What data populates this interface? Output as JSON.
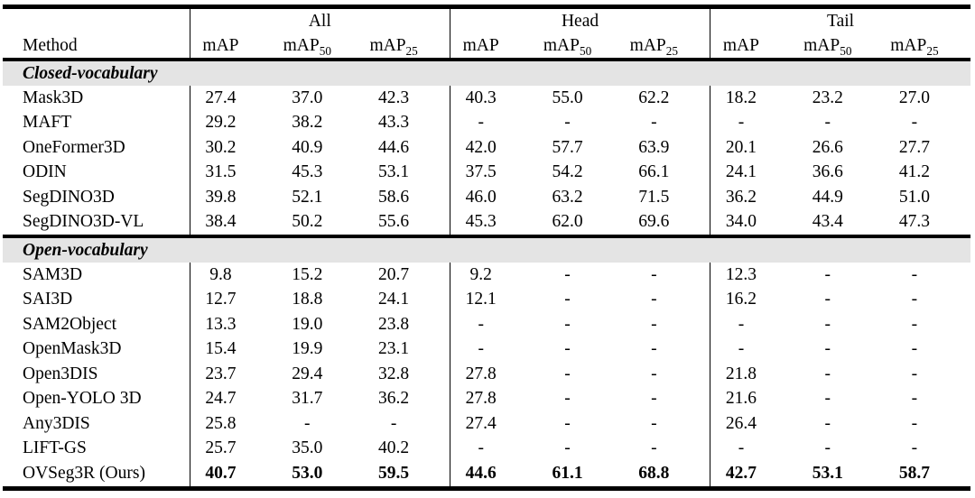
{
  "table": {
    "method_header": "Method",
    "groups": [
      {
        "label": "All"
      },
      {
        "label": "Head"
      },
      {
        "label": "Tail"
      }
    ],
    "metric_headers": [
      {
        "base": "mAP",
        "sub": ""
      },
      {
        "base": "mAP",
        "sub": "50"
      },
      {
        "base": "mAP",
        "sub": "25"
      }
    ],
    "sections": [
      {
        "label": "Closed-vocabulary",
        "rows": [
          {
            "method": "Mask3D",
            "values": [
              "27.4",
              "37.0",
              "42.3",
              "40.3",
              "55.0",
              "62.2",
              "18.2",
              "23.2",
              "27.0"
            ],
            "bold_values": false
          },
          {
            "method": "MAFT",
            "values": [
              "29.2",
              "38.2",
              "43.3",
              "-",
              "-",
              "-",
              "-",
              "-",
              "-"
            ],
            "bold_values": false
          },
          {
            "method": "OneFormer3D",
            "values": [
              "30.2",
              "40.9",
              "44.6",
              "42.0",
              "57.7",
              "63.9",
              "20.1",
              "26.6",
              "27.7"
            ],
            "bold_values": false
          },
          {
            "method": "ODIN",
            "values": [
              "31.5",
              "45.3",
              "53.1",
              "37.5",
              "54.2",
              "66.1",
              "24.1",
              "36.6",
              "41.2"
            ],
            "bold_values": false
          },
          {
            "method": "SegDINO3D",
            "values": [
              "39.8",
              "52.1",
              "58.6",
              "46.0",
              "63.2",
              "71.5",
              "36.2",
              "44.9",
              "51.0"
            ],
            "bold_values": false
          },
          {
            "method": "SegDINO3D-VL",
            "values": [
              "38.4",
              "50.2",
              "55.6",
              "45.3",
              "62.0",
              "69.6",
              "34.0",
              "43.4",
              "47.3"
            ],
            "bold_values": false
          }
        ]
      },
      {
        "label": "Open-vocabulary",
        "rows": [
          {
            "method": "SAM3D",
            "values": [
              "9.8",
              "15.2",
              "20.7",
              "9.2",
              "-",
              "-",
              "12.3",
              "-",
              "-"
            ],
            "bold_values": false
          },
          {
            "method": "SAI3D",
            "values": [
              "12.7",
              "18.8",
              "24.1",
              "12.1",
              "-",
              "-",
              "16.2",
              "-",
              "-"
            ],
            "bold_values": false
          },
          {
            "method": "SAM2Object",
            "values": [
              "13.3",
              "19.0",
              "23.8",
              "-",
              "-",
              "-",
              "-",
              "-",
              "-"
            ],
            "bold_values": false
          },
          {
            "method": "OpenMask3D",
            "values": [
              "15.4",
              "19.9",
              "23.1",
              "-",
              "-",
              "-",
              "-",
              "-",
              "-"
            ],
            "bold_values": false
          },
          {
            "method": "Open3DIS",
            "values": [
              "23.7",
              "29.4",
              "32.8",
              "27.8",
              "-",
              "-",
              "21.8",
              "-",
              "-"
            ],
            "bold_values": false
          },
          {
            "method": "Open-YOLO 3D",
            "values": [
              "24.7",
              "31.7",
              "36.2",
              "27.8",
              "-",
              "-",
              "21.6",
              "-",
              "-"
            ],
            "bold_values": false
          },
          {
            "method": "Any3DIS",
            "values": [
              "25.8",
              "-",
              "-",
              "27.4",
              "-",
              "-",
              "26.4",
              "-",
              "-"
            ],
            "bold_values": false
          },
          {
            "method": "LIFT-GS",
            "values": [
              "25.7",
              "35.0",
              "40.2",
              "-",
              "-",
              "-",
              "-",
              "-",
              "-"
            ],
            "bold_values": false
          },
          {
            "method": "OVSeg3R (Ours)",
            "values": [
              "40.7",
              "53.0",
              "59.5",
              "44.6",
              "61.1",
              "68.8",
              "42.7",
              "53.1",
              "58.7"
            ],
            "bold_values": true
          }
        ]
      }
    ],
    "colors": {
      "section_bg": "#e4e4e4",
      "rule": "#000000",
      "text": "#000000",
      "background": "#ffffff"
    }
  }
}
